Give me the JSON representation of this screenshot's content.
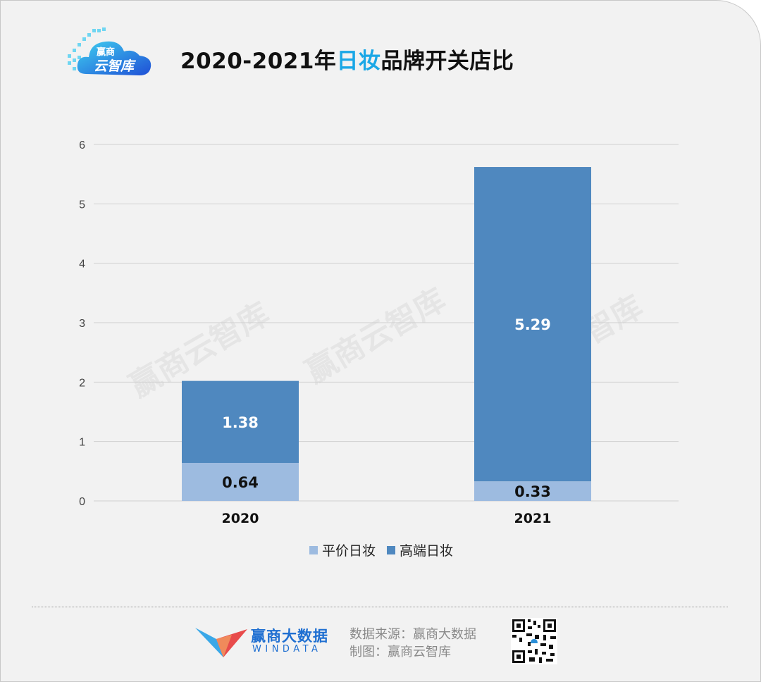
{
  "header": {
    "logo_line1": "赢商",
    "logo_line2": "云智库",
    "title_part1": "2020-2021年",
    "title_highlight": "日妆",
    "title_part2": "品牌开关店比"
  },
  "watermark": "赢商云智库",
  "chart_data": {
    "type": "bar",
    "stacked": true,
    "categories": [
      "2020",
      "2021"
    ],
    "series": [
      {
        "name": "平价日妆",
        "values": [
          0.64,
          0.33
        ],
        "color": "#9dbbe0"
      },
      {
        "name": "高端日妆",
        "values": [
          1.38,
          5.29
        ],
        "color": "#4f88bf"
      }
    ],
    "ylim": [
      0,
      6
    ],
    "yticks": [
      0,
      1,
      2,
      3,
      4,
      5,
      6
    ],
    "grid": true,
    "legend": "bottom"
  },
  "footer": {
    "brand_cn": "赢商大数据",
    "brand_en": "WINDATA",
    "source_line1": "数据来源：赢商大数据",
    "source_line2": "制图：赢商云智库"
  }
}
